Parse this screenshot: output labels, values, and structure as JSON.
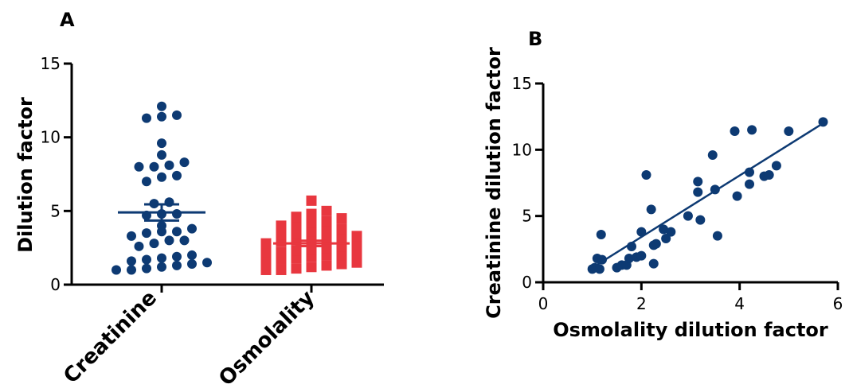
{
  "chart_data": [
    {
      "type": "scatter",
      "panel_label": "A",
      "ylabel": "Dilution factor",
      "ylim": [
        0,
        15
      ],
      "yticks": [
        "0",
        "5",
        "10",
        "15"
      ],
      "categories": [
        "Creatinine",
        "Osmolality"
      ],
      "colors": {
        "Creatinine": "#0d3a73",
        "Osmolality": "#e8373f"
      },
      "series": [
        {
          "name": "Creatinine",
          "values": [
            12.1,
            11.5,
            11.4,
            11.3,
            9.6,
            8.8,
            8.1,
            8.3,
            8.0,
            8.0,
            7.4,
            7.0,
            7.3,
            5.6,
            5.5,
            4.8,
            4.8,
            4.7,
            4.0,
            3.8,
            3.6,
            3.6,
            3.5,
            3.3,
            3.0,
            3.0,
            2.8,
            2.6,
            2.0,
            1.9,
            1.8,
            1.7,
            1.6,
            1.5,
            1.4,
            1.3,
            1.2,
            1.1,
            1.0,
            1.0
          ],
          "mean": 4.9,
          "sem": 0.55
        },
        {
          "name": "Osmolality",
          "values": [
            5.7,
            5.0,
            4.8,
            4.6,
            4.5,
            4.3,
            4.2,
            4.0,
            4.0,
            3.8,
            3.7,
            3.6,
            3.5,
            3.4,
            3.3,
            3.2,
            3.1,
            3.0,
            3.0,
            2.9,
            2.8,
            2.7,
            2.6,
            2.5,
            2.4,
            2.3,
            2.2,
            2.2,
            2.1,
            2.0,
            2.0,
            1.9,
            1.8,
            1.7,
            1.6,
            1.5,
            1.4,
            1.3,
            1.2,
            1.1,
            1.0,
            1.0
          ],
          "mean": 2.8,
          "sem": 0.18
        }
      ]
    },
    {
      "type": "scatter",
      "panel_label": "B",
      "xlabel": "Osmolality dilution factor",
      "ylabel": "Creatinine dilution factor",
      "xlim": [
        0,
        6
      ],
      "ylim": [
        0,
        15
      ],
      "xticks": [
        "0",
        "2",
        "4",
        "6"
      ],
      "yticks": [
        "0",
        "5",
        "10",
        "15"
      ],
      "color": "#0d3a73",
      "points": [
        [
          1.0,
          1.0
        ],
        [
          1.05,
          1.1
        ],
        [
          1.1,
          1.8
        ],
        [
          1.15,
          1.0
        ],
        [
          1.2,
          1.7
        ],
        [
          1.18,
          3.6
        ],
        [
          1.5,
          1.1
        ],
        [
          1.6,
          1.3
        ],
        [
          1.7,
          1.3
        ],
        [
          1.75,
          1.8
        ],
        [
          1.8,
          2.7
        ],
        [
          1.9,
          1.9
        ],
        [
          2.0,
          2.0
        ],
        [
          2.0,
          3.8
        ],
        [
          2.1,
          8.1
        ],
        [
          2.2,
          5.5
        ],
        [
          2.25,
          1.4
        ],
        [
          2.25,
          2.8
        ],
        [
          2.3,
          2.9
        ],
        [
          2.45,
          4.0
        ],
        [
          2.5,
          3.3
        ],
        [
          2.6,
          3.8
        ],
        [
          2.95,
          5.0
        ],
        [
          3.15,
          7.6
        ],
        [
          3.15,
          6.8
        ],
        [
          3.2,
          4.7
        ],
        [
          3.45,
          9.6
        ],
        [
          3.5,
          7.0
        ],
        [
          3.55,
          3.5
        ],
        [
          3.9,
          11.4
        ],
        [
          3.95,
          6.5
        ],
        [
          4.2,
          7.4
        ],
        [
          4.2,
          8.3
        ],
        [
          4.25,
          11.5
        ],
        [
          4.5,
          8.0
        ],
        [
          4.6,
          8.1
        ],
        [
          4.75,
          8.8
        ],
        [
          5.0,
          11.4
        ],
        [
          5.7,
          12.1
        ]
      ],
      "fit_line": {
        "x": [
          1.0,
          5.7
        ],
        "y": [
          1.1,
          12.0
        ]
      }
    }
  ]
}
